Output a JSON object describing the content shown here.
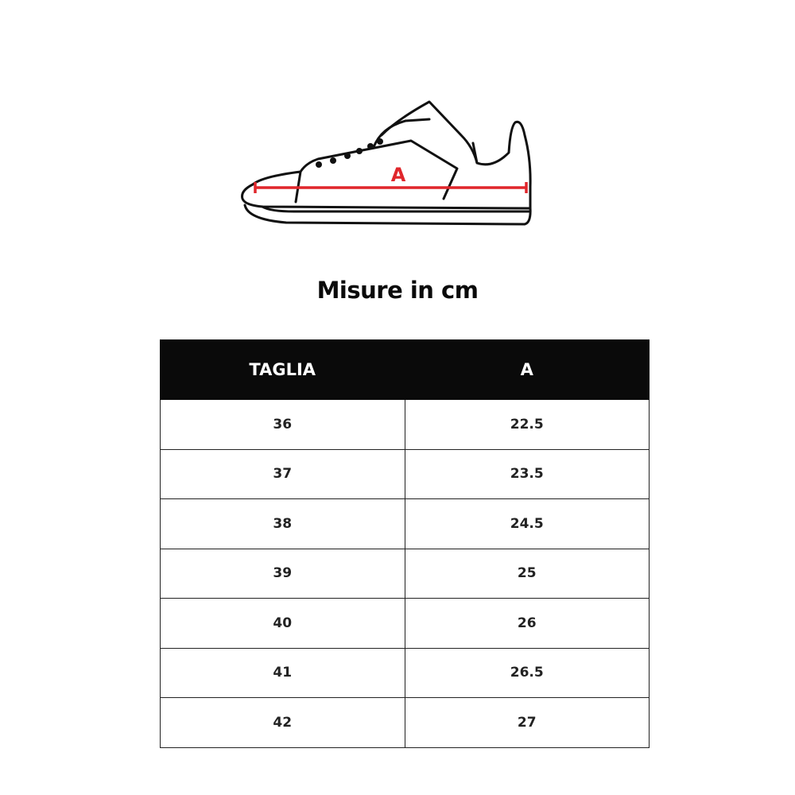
{
  "diagram": {
    "measure_label": "A",
    "measure_color": "#e0262b"
  },
  "title": "Misure in cm",
  "table": {
    "headers": [
      "TAGLIA",
      "A"
    ],
    "rows": [
      [
        "36",
        "22.5"
      ],
      [
        "37",
        "23.5"
      ],
      [
        "38",
        "24.5"
      ],
      [
        "39",
        "25"
      ],
      [
        "40",
        "26"
      ],
      [
        "41",
        "26.5"
      ],
      [
        "42",
        "27"
      ]
    ]
  }
}
